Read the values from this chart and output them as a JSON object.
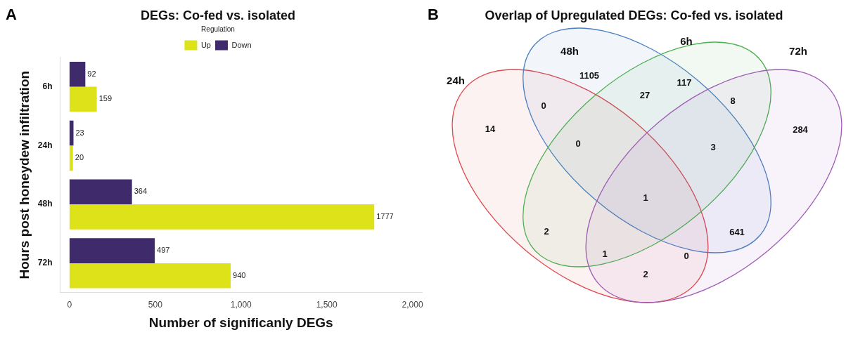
{
  "chart_data": [
    {
      "type": "bar",
      "title": "DEGs: Co-fed vs. isolated",
      "xlabel": "Number of significanly DEGs",
      "ylabel": "Hours post honeydew infiltration",
      "orientation": "horizontal",
      "categories": [
        "6h",
        "24h",
        "48h",
        "72h"
      ],
      "series": [
        {
          "name": "Up",
          "color": "#dde318",
          "values": [
            159,
            20,
            1777,
            940
          ]
        },
        {
          "name": "Down",
          "color": "#3f2a6c",
          "values": [
            92,
            23,
            364,
            497
          ]
        }
      ],
      "xlim": [
        -55,
        2055
      ],
      "xticks": [
        0,
        500,
        {
          "value": 1000,
          "label": "1,000"
        },
        {
          "value": 1500,
          "label": "1,500"
        },
        {
          "value": 2000,
          "label": "2,000"
        }
      ],
      "legend": "top",
      "legend_title": "Regulation",
      "data_labels": true,
      "annotations": [
        "A"
      ]
    },
    {
      "type": "other",
      "title": "Overlap of Upregulated DEGs: Co-fed vs. isolated",
      "annotations": [
        "B",
        "24h",
        "48h",
        "6h",
        "72h",
        "14",
        "1105",
        "117",
        "284",
        "0",
        "27",
        "8",
        "0",
        "3",
        "1",
        "2",
        "641",
        "1",
        "0",
        "2"
      ]
    }
  ]
}
